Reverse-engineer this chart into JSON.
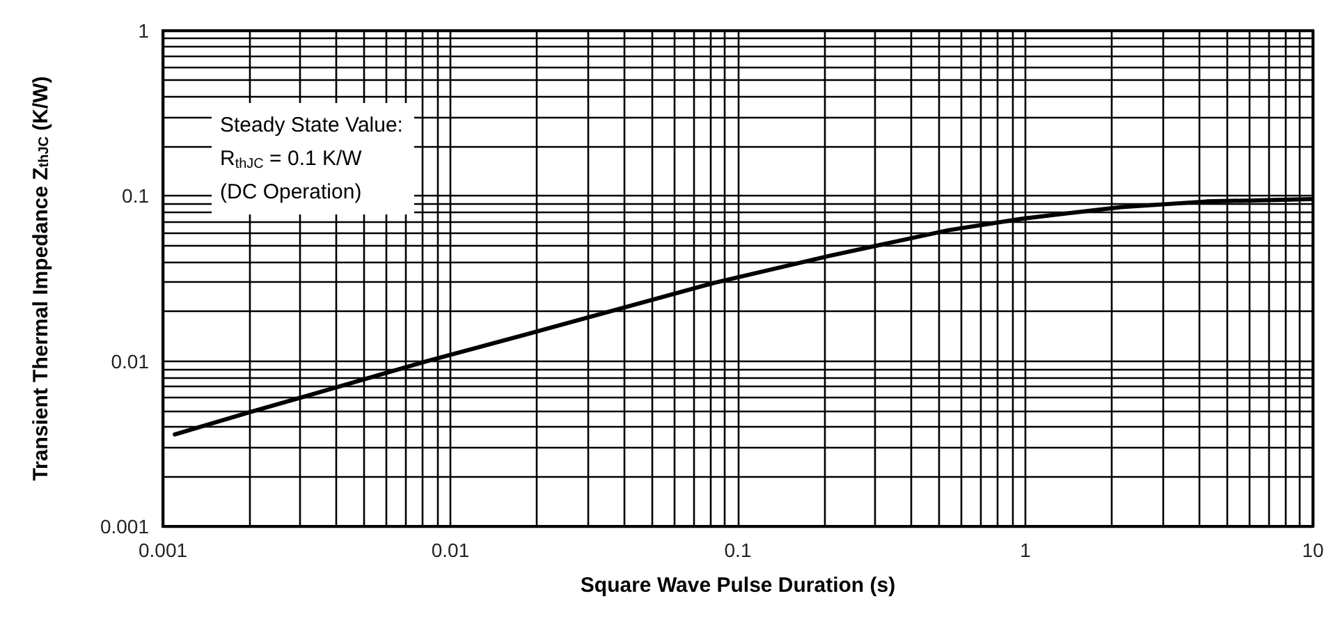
{
  "chart_data": {
    "type": "line",
    "xlabel": "Square Wave Pulse Duration (s)",
    "ylabel": "Transient Thermal Impedance Z$_{thJC}$ (K/W)",
    "annotations": [
      "Steady State Value:\nR$_{thJC}$ = 0.1 K/W\n(DC Operation)"
    ],
    "series": [
      {
        "color": "#000000",
        "x": [
          0.0011,
          0.002,
          0.003,
          0.0083,
          0.0208,
          0.083,
          0.21,
          0.54,
          0.97,
          2.15,
          4.27,
          9.8
        ],
        "values": [
          0.0036,
          0.0049,
          0.006,
          0.01,
          0.0154,
          0.0298,
          0.0435,
          0.062,
          0.0727,
          0.0855,
          0.0925,
          0.0955
        ]
      }
    ],
    "log": "xy",
    "xlim": [
      0.001,
      10
    ],
    "ylim": [
      0.001,
      1
    ],
    "xticks": [
      0.001,
      {
        "value": 0.002,
        "label": null
      },
      {
        "value": 0.003,
        "label": null
      },
      {
        "value": 0.004,
        "label": null
      },
      {
        "value": 0.005,
        "label": null
      },
      {
        "value": 0.006,
        "label": null
      },
      {
        "value": 0.007,
        "label": null
      },
      {
        "value": 0.008,
        "label": null
      },
      {
        "value": 0.009,
        "label": null
      },
      0.01,
      {
        "value": 0.02,
        "label": null
      },
      {
        "value": 0.03,
        "label": null
      },
      {
        "value": 0.04,
        "label": null
      },
      {
        "value": 0.05,
        "label": null
      },
      {
        "value": 0.06,
        "label": null
      },
      {
        "value": 0.07,
        "label": null
      },
      {
        "value": 0.08,
        "label": null
      },
      {
        "value": 0.09,
        "label": null
      },
      0.1,
      {
        "value": 0.2,
        "label": null
      },
      {
        "value": 0.3,
        "label": null
      },
      {
        "value": 0.4,
        "label": null
      },
      {
        "value": 0.5,
        "label": null
      },
      {
        "value": 0.6,
        "label": null
      },
      {
        "value": 0.7,
        "label": null
      },
      {
        "value": 0.8,
        "label": null
      },
      {
        "value": 0.9,
        "label": null
      },
      1,
      {
        "value": 2,
        "label": null
      },
      {
        "value": 3,
        "label": null
      },
      {
        "value": 4,
        "label": null
      },
      {
        "value": 5,
        "label": null
      },
      {
        "value": 6,
        "label": null
      },
      {
        "value": 7,
        "label": null
      },
      {
        "value": 8,
        "label": null
      },
      {
        "value": 9,
        "label": null
      },
      10
    ],
    "yticks": [
      0.001,
      {
        "value": 0.002,
        "label": null
      },
      {
        "value": 0.003,
        "label": null
      },
      {
        "value": 0.004,
        "label": null
      },
      {
        "value": 0.005,
        "label": null
      },
      {
        "value": 0.006,
        "label": null
      },
      {
        "value": 0.007,
        "label": null
      },
      {
        "value": 0.008,
        "label": null
      },
      {
        "value": 0.009,
        "label": null
      },
      0.01,
      {
        "value": 0.02,
        "label": null
      },
      {
        "value": 0.03,
        "label": null
      },
      {
        "value": 0.04,
        "label": null
      },
      {
        "value": 0.05,
        "label": null
      },
      {
        "value": 0.06,
        "label": null
      },
      {
        "value": 0.07,
        "label": null
      },
      {
        "value": 0.08,
        "label": null
      },
      {
        "value": 0.09,
        "label": null
      },
      0.1,
      {
        "value": 0.2,
        "label": null
      },
      {
        "value": 0.3,
        "label": null
      },
      {
        "value": 0.4,
        "label": null
      },
      {
        "value": 0.5,
        "label": null
      },
      {
        "value": 0.6,
        "label": null
      },
      {
        "value": 0.7,
        "label": null
      },
      {
        "value": 0.8,
        "label": null
      },
      {
        "value": 0.9,
        "label": null
      },
      1
    ],
    "grid": true,
    "marker": "none",
    "line_style": "solid"
  }
}
